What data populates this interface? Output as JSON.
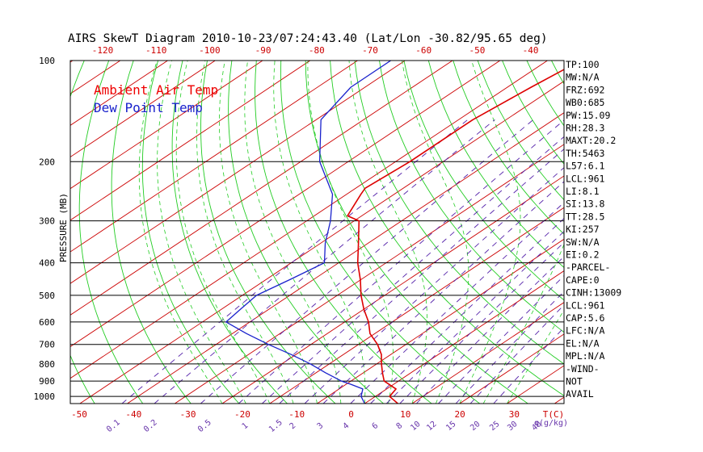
{
  "title": "AIRS SkewT Diagram 2010-10-23/07:24:43.40 (Lat/Lon -30.82/95.65 deg)",
  "ylabel": "PRESSURE (MB)",
  "colors": {
    "background": "#ffffff",
    "frame": "#000000",
    "isotherm": "#cc0000",
    "dry_adiabat": "#22cc22",
    "moist_adiabat": "#22cc22",
    "mixing_ratio": "#5522aa",
    "ambient": "#dd0000",
    "dewpoint": "#1a22cc",
    "labels": "#cc0000",
    "mixing_labels": "#6633aa"
  },
  "legend": {
    "ambient_label": "Ambient Air Temp",
    "dewpoint_label": "Dew Point Temp"
  },
  "stats": [
    "TP:100",
    "MW:N/A",
    "FRZ:692",
    "WB0:685",
    "PW:15.09",
    "RH:28.3",
    "MAXT:20.2",
    "TH:5463",
    "L57:6.1",
    "LCL:961",
    "LI:8.1",
    "SI:13.8",
    "TT:28.5",
    "KI:257",
    "SW:N/A",
    "EI:0.2",
    "-PARCEL-",
    "CAPE:0",
    "CINH:13009",
    "LCL:961",
    "CAP:5.6",
    "LFC:N/A",
    "EL:N/A",
    "MPL:N/A",
    "-WIND-",
    "NOT",
    "AVAIL"
  ],
  "chart_data": {
    "type": "line",
    "title": "AIRS SkewT Diagram 2010-10-23/07:24:43.40 (Lat/Lon -30.82/95.65 deg)",
    "ylabel": "PRESSURE (MB)",
    "y_scale": "log",
    "ylim": [
      1050,
      100
    ],
    "xlim": [
      -52,
      52
    ],
    "pressure_ticks": [
      100,
      200,
      300,
      400,
      500,
      600,
      700,
      800,
      900,
      1000
    ],
    "top_temp_ticks": [
      -120,
      -110,
      -100,
      -90,
      -80,
      -70,
      -60,
      -50,
      -40
    ],
    "bottom_temp_ticks": [
      -50,
      -40,
      -30,
      -20,
      -10,
      0,
      10,
      20,
      30
    ],
    "bottom_temp_unit": "T(C)",
    "mixing_ratio_ticks": [
      "0.1",
      "0.2",
      "0.5",
      "1",
      "1.5",
      "2",
      "3",
      "4",
      "6",
      "8",
      "10",
      "12",
      "15",
      "20",
      "25",
      "30",
      "40"
    ],
    "mixing_ratio_unit": "q(g/kg)",
    "series": [
      {
        "name": "Ambient Air Temp",
        "points": [
          {
            "p": 1050,
            "t": 17
          },
          {
            "p": 1000,
            "t": 13
          },
          {
            "p": 950,
            "t": 12
          },
          {
            "p": 900,
            "t": 7
          },
          {
            "p": 850,
            "t": 4
          },
          {
            "p": 800,
            "t": 1
          },
          {
            "p": 750,
            "t": -2
          },
          {
            "p": 700,
            "t": -6
          },
          {
            "p": 650,
            "t": -11
          },
          {
            "p": 600,
            "t": -15
          },
          {
            "p": 550,
            "t": -20
          },
          {
            "p": 500,
            "t": -25
          },
          {
            "p": 450,
            "t": -30
          },
          {
            "p": 400,
            "t": -36
          },
          {
            "p": 350,
            "t": -42
          },
          {
            "p": 300,
            "t": -49
          },
          {
            "p": 290,
            "t": -53
          },
          {
            "p": 250,
            "t": -57
          },
          {
            "p": 240,
            "t": -58
          },
          {
            "p": 200,
            "t": -57
          },
          {
            "p": 150,
            "t": -57
          },
          {
            "p": 120,
            "t": -55
          },
          {
            "p": 100,
            "t": -53
          }
        ]
      },
      {
        "name": "Dew Point Temp",
        "points": [
          {
            "p": 1050,
            "t": 10
          },
          {
            "p": 1000,
            "t": 7
          },
          {
            "p": 950,
            "t": 5
          },
          {
            "p": 920,
            "t": 1
          },
          {
            "p": 900,
            "t": -2
          },
          {
            "p": 850,
            "t": -8
          },
          {
            "p": 800,
            "t": -14
          },
          {
            "p": 750,
            "t": -21
          },
          {
            "p": 700,
            "t": -29
          },
          {
            "p": 650,
            "t": -37
          },
          {
            "p": 600,
            "t": -45
          },
          {
            "p": 550,
            "t": -46
          },
          {
            "p": 500,
            "t": -47
          },
          {
            "p": 450,
            "t": -45
          },
          {
            "p": 400,
            "t": -43
          },
          {
            "p": 350,
            "t": -49
          },
          {
            "p": 300,
            "t": -55
          },
          {
            "p": 250,
            "t": -63
          },
          {
            "p": 200,
            "t": -76
          },
          {
            "p": 150,
            "t": -89
          },
          {
            "p": 120,
            "t": -93
          },
          {
            "p": 100,
            "t": -93
          }
        ]
      }
    ]
  }
}
